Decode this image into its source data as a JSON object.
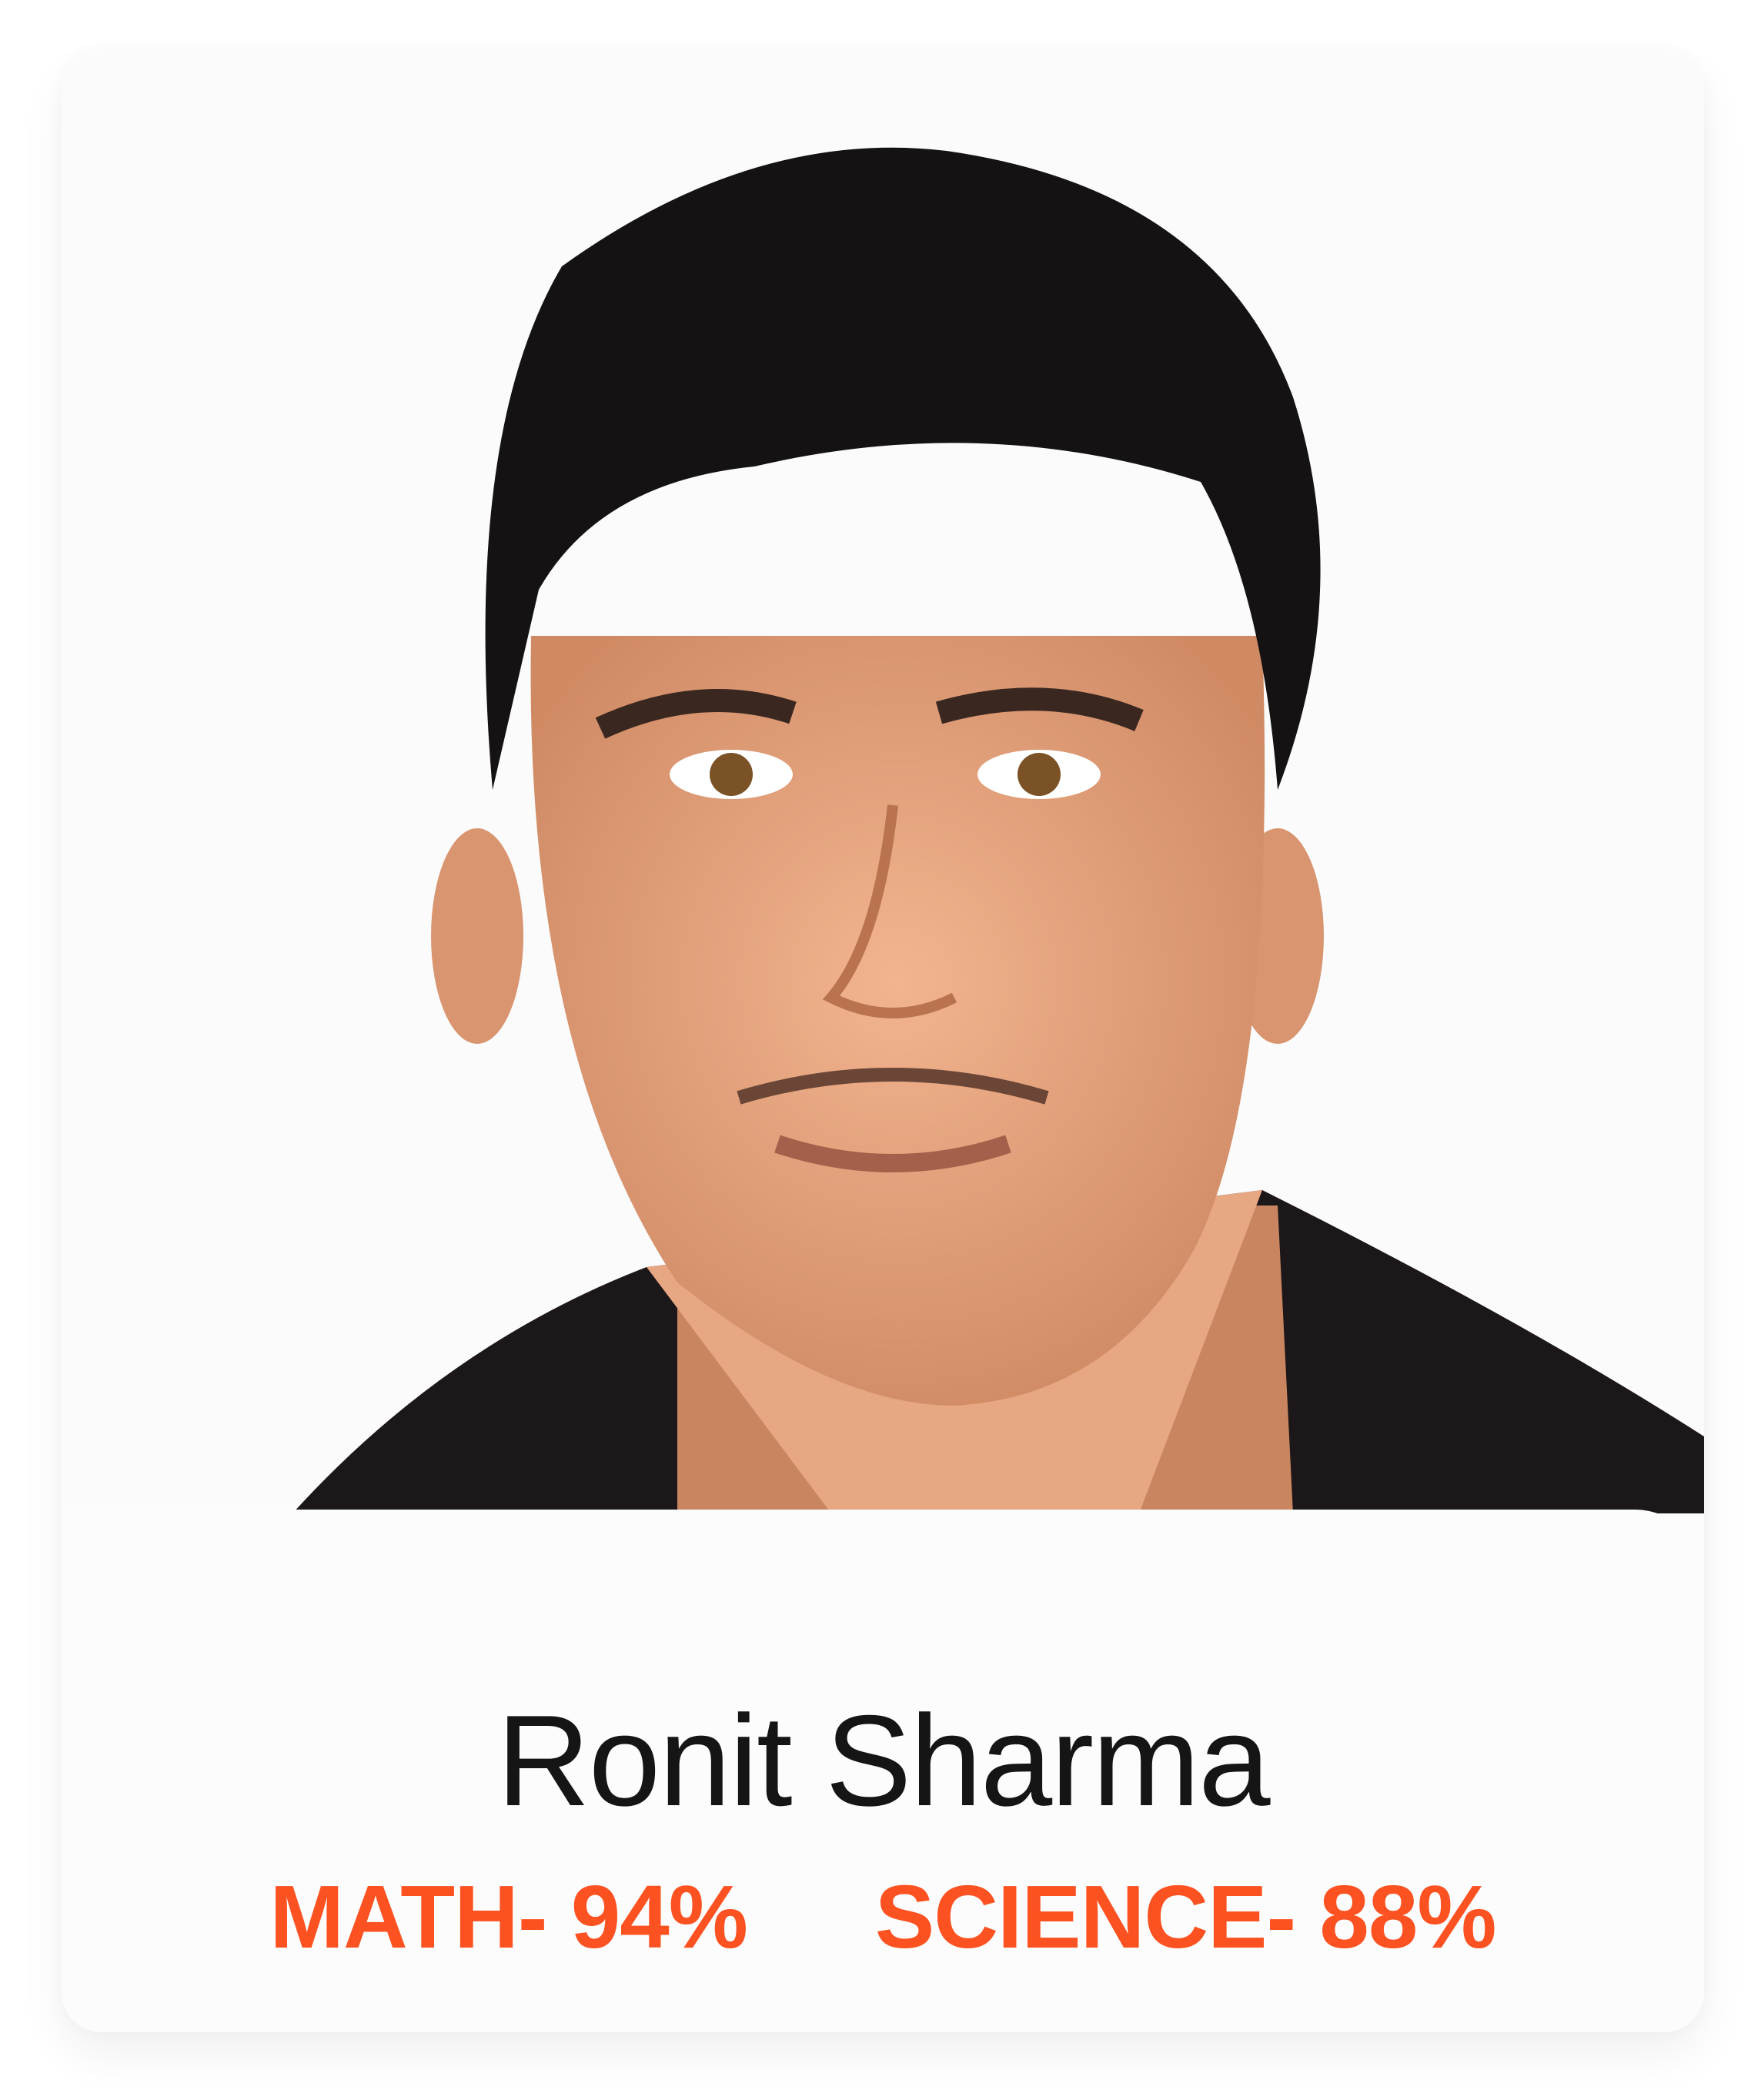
{
  "profile": {
    "name": "Ronit Sharma",
    "scores": [
      {
        "label": "MATH- 94%"
      },
      {
        "label": "SCIENCE- 88%"
      }
    ]
  },
  "colors": {
    "accent": "#fc5120",
    "name_text": "#151515"
  }
}
